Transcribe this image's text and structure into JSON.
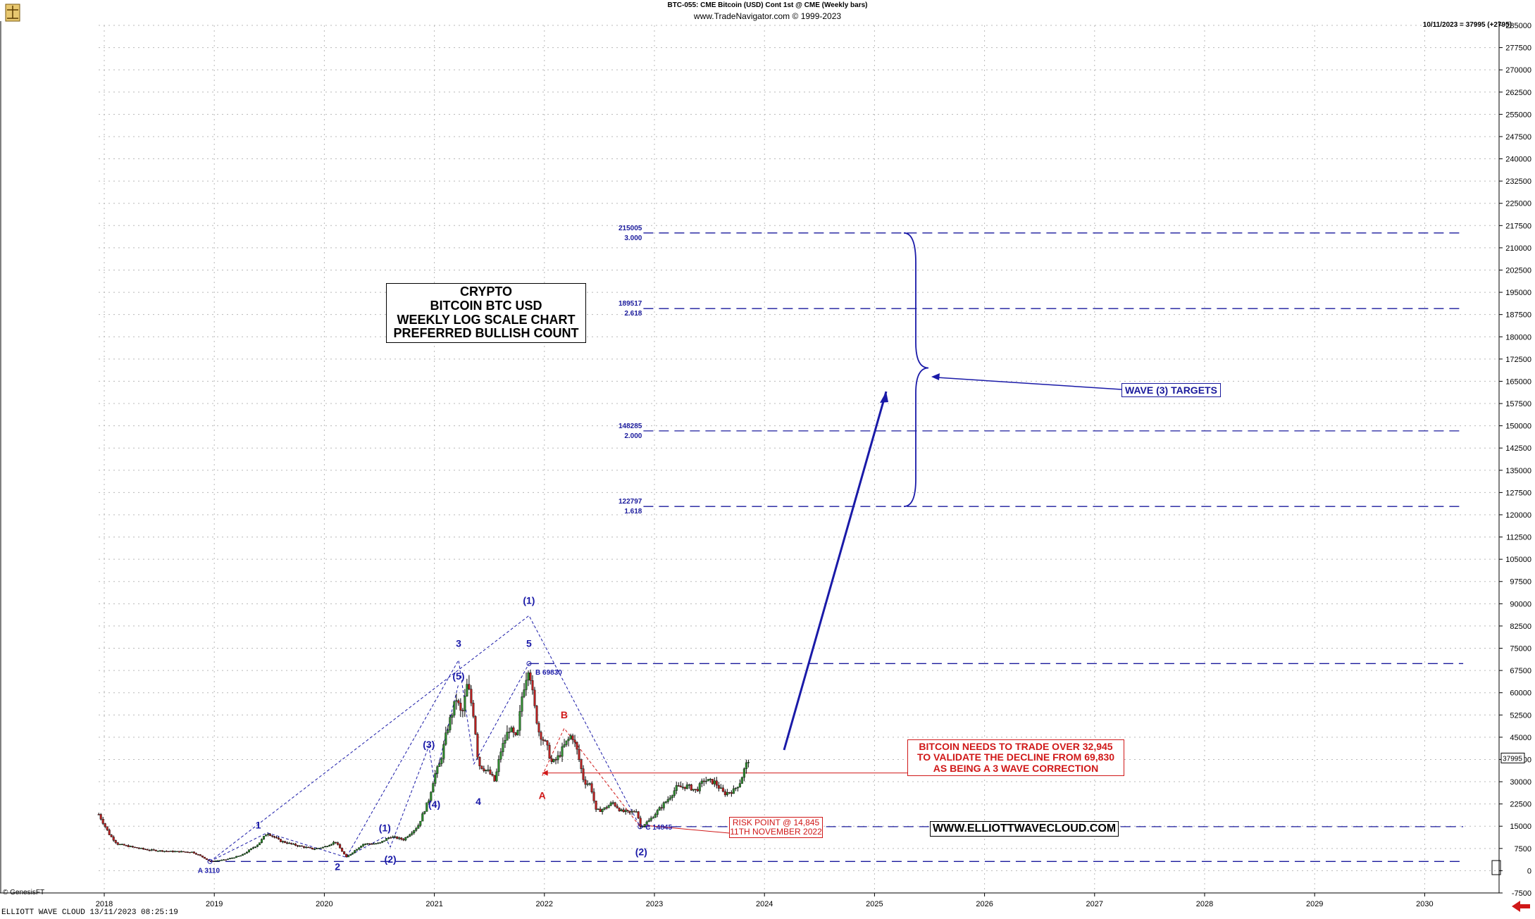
{
  "header": {
    "line1": "BTC-055:  CME Bitcoin (USD) Cont 1st @ CME  (Weekly bars)",
    "line2": "www.TradeNavigator.com © 1999-2023",
    "last_quote": "10/11/2023 = 37995 (+2795)"
  },
  "footer": {
    "copyright": "© GenesisFT",
    "app": "ELLIOTT WAVE CLOUD   13/11/2023 08:25:19"
  },
  "title_box": {
    "lines": [
      "CRYPTO",
      "BITCOIN BTC USD",
      "WEEKLY LOG SCALE CHART",
      "PREFERRED BULLISH COUNT"
    ]
  },
  "targets_label": "WAVE (3) TARGETS",
  "validation_note": [
    "BITCOIN NEEDS TO TRADE OVER 32,945",
    "TO VALIDATE THE DECLINE FROM 69,830",
    "AS BEING A 3 WAVE CORRECTION"
  ],
  "risk_note": [
    "RISK POINT @ 14,845",
    "11TH NOVEMBER 2022"
  ],
  "website": "WWW.ELLIOTTWAVECLOUD.COM",
  "colors": {
    "target": "#1a1a9c",
    "wave": "#1a1aa8",
    "red": "#d01818",
    "bull": "#2e8b2e",
    "bear": "#b82020",
    "grid": "#b8b8b8"
  },
  "chart_data": {
    "type": "candlestick",
    "title": "BTC-055:  CME Bitcoin (USD) Cont 1st @ CME  (Weekly bars)",
    "x_ticks": [
      "2018",
      "2019",
      "2020",
      "2021",
      "2022",
      "2023",
      "2024",
      "2025",
      "2026",
      "2027",
      "2028",
      "2029",
      "2030"
    ],
    "y_ticks": [
      "285000",
      "277500",
      "270000",
      "262500",
      "255000",
      "247500",
      "240000",
      "232500",
      "225000",
      "217500",
      "210000",
      "202500",
      "195000",
      "187500",
      "180000",
      "172500",
      "165000",
      "157500",
      "150000",
      "142500",
      "135000",
      "127500",
      "120000",
      "112500",
      "105000",
      "97500",
      "90000",
      "82500",
      "75000",
      "67500",
      "60000",
      "52500",
      "45000",
      "37500",
      "30000",
      "22500",
      "15000",
      "7500",
      "0",
      "-7500"
    ],
    "ylim": [
      -7500,
      285000
    ],
    "last_price": "37995",
    "price_path": [
      {
        "t": 2017.95,
        "p": 19000
      },
      {
        "t": 2018.05,
        "p": 12000
      },
      {
        "t": 2018.12,
        "p": 9000
      },
      {
        "t": 2018.25,
        "p": 8000
      },
      {
        "t": 2018.4,
        "p": 7000
      },
      {
        "t": 2018.6,
        "p": 6500
      },
      {
        "t": 2018.8,
        "p": 6300
      },
      {
        "t": 2018.9,
        "p": 4500
      },
      {
        "t": 2018.96,
        "p": 3110
      },
      {
        "t": 2019.1,
        "p": 3700
      },
      {
        "t": 2019.25,
        "p": 5200
      },
      {
        "t": 2019.4,
        "p": 9000
      },
      {
        "t": 2019.48,
        "p": 12800
      },
      {
        "t": 2019.6,
        "p": 10000
      },
      {
        "t": 2019.75,
        "p": 8500
      },
      {
        "t": 2019.9,
        "p": 7300
      },
      {
        "t": 2020.0,
        "p": 8000
      },
      {
        "t": 2020.1,
        "p": 9800
      },
      {
        "t": 2020.2,
        "p": 4500
      },
      {
        "t": 2020.35,
        "p": 9000
      },
      {
        "t": 2020.5,
        "p": 9200
      },
      {
        "t": 2020.6,
        "p": 11500
      },
      {
        "t": 2020.72,
        "p": 10500
      },
      {
        "t": 2020.85,
        "p": 15000
      },
      {
        "t": 2020.95,
        "p": 24000
      },
      {
        "t": 2021.0,
        "p": 32000
      },
      {
        "t": 2021.05,
        "p": 36000
      },
      {
        "t": 2021.12,
        "p": 48000
      },
      {
        "t": 2021.2,
        "p": 58000
      },
      {
        "t": 2021.25,
        "p": 52000
      },
      {
        "t": 2021.3,
        "p": 63000
      },
      {
        "t": 2021.36,
        "p": 52000
      },
      {
        "t": 2021.4,
        "p": 36000
      },
      {
        "t": 2021.5,
        "p": 33000
      },
      {
        "t": 2021.55,
        "p": 30000
      },
      {
        "t": 2021.6,
        "p": 40000
      },
      {
        "t": 2021.68,
        "p": 48000
      },
      {
        "t": 2021.75,
        "p": 44000
      },
      {
        "t": 2021.8,
        "p": 60000
      },
      {
        "t": 2021.86,
        "p": 69830
      },
      {
        "t": 2021.9,
        "p": 57000
      },
      {
        "t": 2021.95,
        "p": 47000
      },
      {
        "t": 2022.02,
        "p": 42000
      },
      {
        "t": 2022.07,
        "p": 36000
      },
      {
        "t": 2022.12,
        "p": 38000
      },
      {
        "t": 2022.18,
        "p": 42000
      },
      {
        "t": 2022.25,
        "p": 46000
      },
      {
        "t": 2022.3,
        "p": 40000
      },
      {
        "t": 2022.36,
        "p": 30000
      },
      {
        "t": 2022.42,
        "p": 29000
      },
      {
        "t": 2022.47,
        "p": 20000
      },
      {
        "t": 2022.55,
        "p": 21000
      },
      {
        "t": 2022.62,
        "p": 23000
      },
      {
        "t": 2022.7,
        "p": 20000
      },
      {
        "t": 2022.78,
        "p": 19500
      },
      {
        "t": 2022.84,
        "p": 20500
      },
      {
        "t": 2022.87,
        "p": 14845
      },
      {
        "t": 2022.95,
        "p": 16800
      },
      {
        "t": 2023.05,
        "p": 21000
      },
      {
        "t": 2023.12,
        "p": 24000
      },
      {
        "t": 2023.2,
        "p": 28000
      },
      {
        "t": 2023.3,
        "p": 28500
      },
      {
        "t": 2023.38,
        "p": 27000
      },
      {
        "t": 2023.45,
        "p": 30500
      },
      {
        "t": 2023.55,
        "p": 29800
      },
      {
        "t": 2023.63,
        "p": 26000
      },
      {
        "t": 2023.72,
        "p": 27000
      },
      {
        "t": 2023.78,
        "p": 30000
      },
      {
        "t": 2023.82,
        "p": 34500
      },
      {
        "t": 2023.86,
        "p": 37995
      }
    ],
    "target_levels": [
      {
        "value": 215005,
        "label": "215005",
        "ratio": "3.000"
      },
      {
        "value": 189517,
        "label": "189517",
        "ratio": "2.618"
      },
      {
        "value": 148285,
        "label": "148285",
        "ratio": "2.000"
      },
      {
        "value": 122797,
        "label": "122797",
        "ratio": "1.618"
      }
    ],
    "horizontal_levels": [
      69830,
      14845,
      3110
    ],
    "validation_level": 32945,
    "wave_labels": [
      {
        "text": "A 3110",
        "t": 2018.95,
        "p": 3110,
        "color": "wave",
        "pos": "below"
      },
      {
        "text": "1",
        "t": 2019.4,
        "p": 12800,
        "color": "wave",
        "pos": "above"
      },
      {
        "text": "2",
        "t": 2020.12,
        "p": 4000,
        "color": "wave",
        "pos": "below"
      },
      {
        "text": "(1)",
        "t": 2020.55,
        "p": 11800,
        "color": "wave",
        "pos": "above"
      },
      {
        "text": "(2)",
        "t": 2020.6,
        "p": 6500,
        "color": "wave",
        "pos": "below"
      },
      {
        "text": "(3)",
        "t": 2020.95,
        "p": 40000,
        "color": "wave",
        "pos": "above"
      },
      {
        "text": "(4)",
        "t": 2021.0,
        "p": 25000,
        "color": "wave",
        "pos": "below"
      },
      {
        "text": "(5)",
        "t": 2021.22,
        "p": 63000,
        "color": "wave",
        "pos": "above"
      },
      {
        "text": "3",
        "t": 2021.22,
        "p": 74000,
        "color": "wave",
        "pos": "above"
      },
      {
        "text": "4",
        "t": 2021.4,
        "p": 26000,
        "color": "wave",
        "pos": "below"
      },
      {
        "text": "5",
        "t": 2021.86,
        "p": 74000,
        "color": "wave",
        "pos": "above"
      },
      {
        "text": "(1)",
        "t": 2021.86,
        "p": 88500,
        "color": "wave",
        "pos": "above"
      },
      {
        "text": "B 69830",
        "t": 2021.88,
        "p": 67000,
        "color": "wave",
        "pos": "right"
      },
      {
        "text": "B",
        "t": 2022.18,
        "p": 50000,
        "color": "red",
        "pos": "above"
      },
      {
        "text": "A",
        "t": 2021.98,
        "p": 28000,
        "color": "red",
        "pos": "below"
      },
      {
        "text": "C 14845",
        "t": 2022.88,
        "p": 14845,
        "color": "wave",
        "pos": "right"
      },
      {
        "text": "(2)",
        "t": 2022.88,
        "p": 9000,
        "color": "wave",
        "pos": "below"
      }
    ]
  }
}
